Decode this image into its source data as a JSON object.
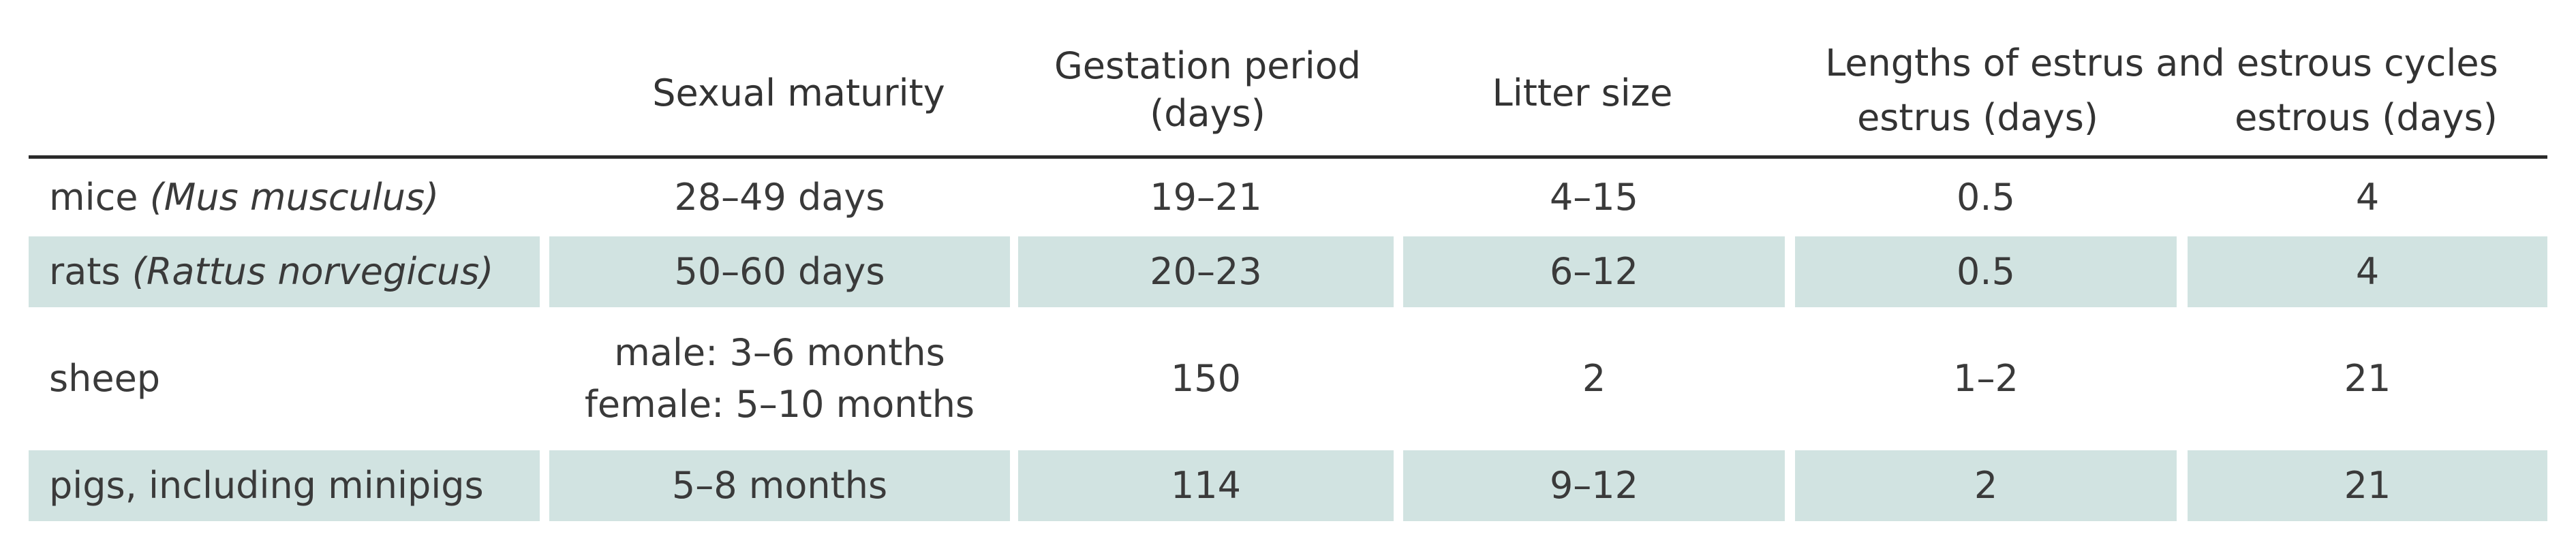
{
  "table": {
    "headers": {
      "species": "",
      "sexual_maturity": "Sexual maturity",
      "gestation_line1": "Gestation period",
      "gestation_line2": "(days)",
      "litter_size": "Litter size",
      "estrus_group": "Lengths of estrus and estrous cycles",
      "estrus": "estrus (days)",
      "estrous": "estrous (days)"
    },
    "rows": [
      {
        "species_name": "mice ",
        "species_latin": "(Mus musculus)",
        "maturity_line1": "28–49 days",
        "maturity_line2": "",
        "gestation": "19–21",
        "litter": "4–15",
        "estrus": "0.5",
        "estrous": "4",
        "shaded": "no"
      },
      {
        "species_name": "rats ",
        "species_latin": "(Rattus norvegicus)",
        "maturity_line1": "50–60 days",
        "maturity_line2": "",
        "gestation": "20–23",
        "litter": "6–12",
        "estrus": "0.5",
        "estrous": "4",
        "shaded": "yes"
      },
      {
        "species_name": "sheep",
        "species_latin": "",
        "maturity_line1": "male: 3–6 months",
        "maturity_line2": "female: 5–10 months",
        "gestation": "150",
        "litter": "2",
        "estrus": "1–2",
        "estrous": "21",
        "shaded": "no"
      },
      {
        "species_name": "pigs, including minipigs",
        "species_latin": "",
        "maturity_line1": "5–8 months",
        "maturity_line2": "",
        "gestation": "114",
        "litter": "9–12",
        "estrus": "2",
        "estrous": "21",
        "shaded": "yes"
      }
    ]
  },
  "colors": {
    "row_shade": "#d1e3e1",
    "rule": "#2b2b2b",
    "text": "#3a3a3a"
  }
}
